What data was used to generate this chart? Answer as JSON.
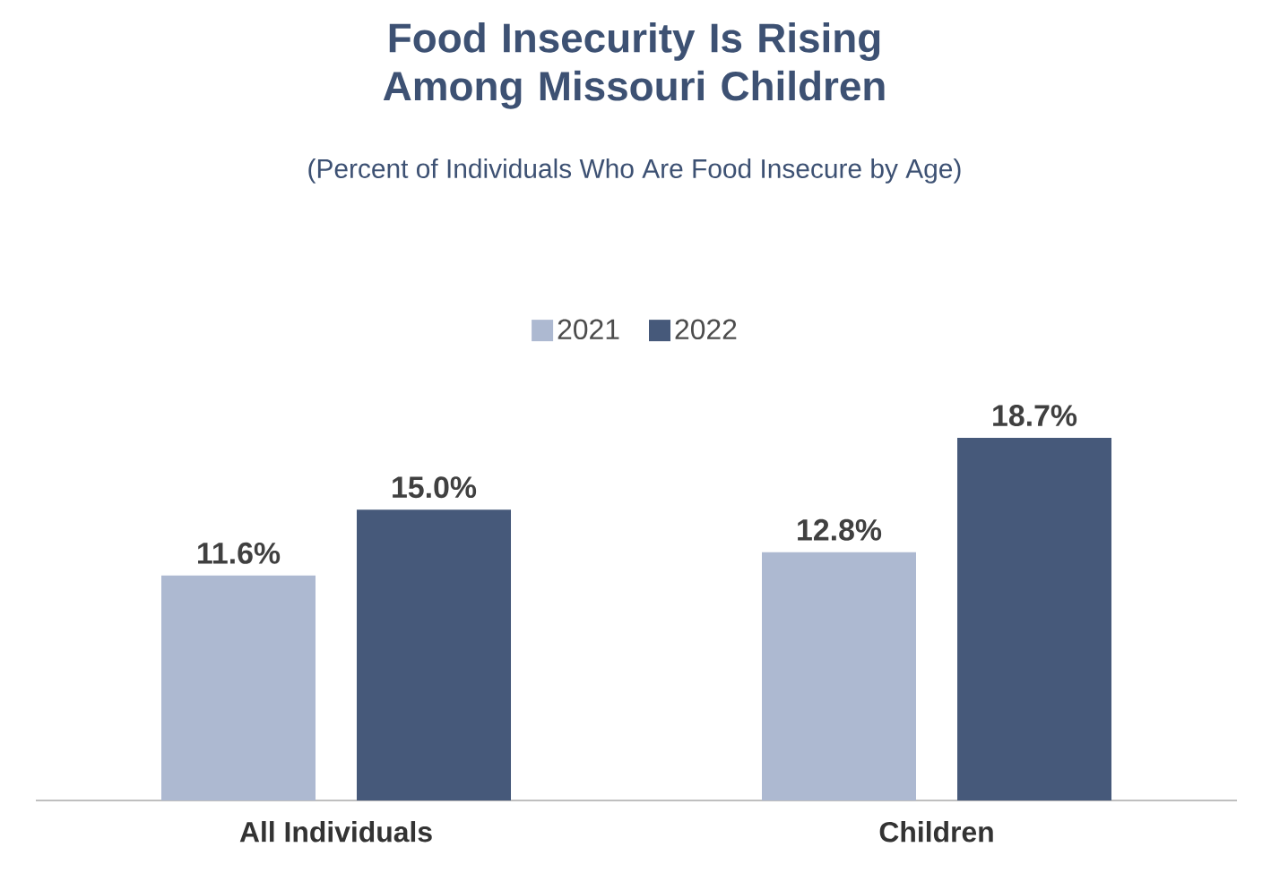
{
  "chart_data": {
    "type": "bar",
    "title": "Food Insecurity Is Rising Among Missouri Children",
    "subtitle": "(Percent of Individuals Who Are Food Insecure by Age)",
    "categories": [
      "All Individuals",
      "Children"
    ],
    "series": [
      {
        "name": "2021",
        "color": "#adb9d1",
        "values": [
          11.6,
          12.8
        ],
        "value_labels": [
          "11.6%",
          "12.8%"
        ]
      },
      {
        "name": "2022",
        "color": "#46597a",
        "values": [
          15.0,
          18.7
        ],
        "value_labels": [
          "15.0%",
          "18.7%"
        ]
      }
    ],
    "legend": "top"
  }
}
